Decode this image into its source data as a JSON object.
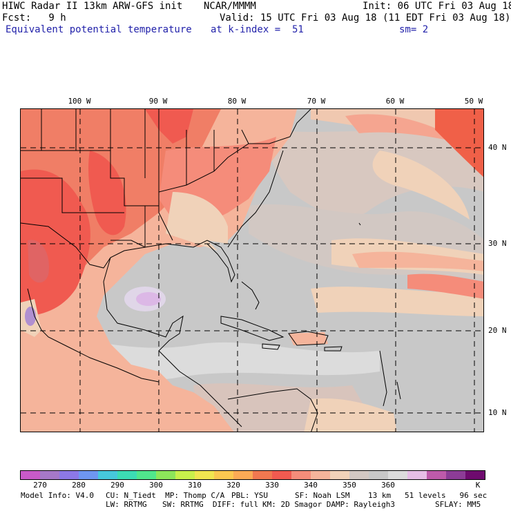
{
  "header": {
    "model": "HIWC Radar II 13km ARW-GFS init",
    "org": "NCAR/MMMM",
    "init": "Init: 06 UTC Fri 03 Aug 18",
    "fcst": "Fcst:   9 h",
    "valid": "Valid: 15 UTC Fri 03 Aug 18 (11 EDT Fri 03 Aug 18)",
    "field": "Equivalent potential temperature",
    "level": "at k-index =  51",
    "smooth": "sm= 2"
  },
  "axes": {
    "lon_ticks": [
      "100 W",
      "90 W",
      "80 W",
      "70 W",
      "60 W",
      "50 W"
    ],
    "lat_ticks": [
      "40 N",
      "30 N",
      "20 N",
      "10 N"
    ]
  },
  "colorbar": {
    "colors": [
      "#c85ac8",
      "#a678c8",
      "#8c78e6",
      "#6e96f0",
      "#46c8dc",
      "#3cdcb4",
      "#50e68c",
      "#8ce65a",
      "#c8f04b",
      "#f0e650",
      "#fac850",
      "#faaa55",
      "#f07850",
      "#f05a50",
      "#f58c7a",
      "#f5b49b",
      "#f0d2b9",
      "#d2c8c3",
      "#c8c8c8",
      "#dcdcdc",
      "#e6bee6",
      "#be5aaa",
      "#8c3c96",
      "#6e0a6e"
    ],
    "labels": [
      "270",
      "280",
      "290",
      "300",
      "310",
      "320",
      "330",
      "340",
      "350",
      "360"
    ],
    "unit": "K"
  },
  "footer": {
    "line1_a": "Model Info: V4.0",
    "line1_b": "CU: N_Tiedt  MP: Thomp C/A",
    "line1_c": "PBL: YSU",
    "line1_d": "SF: Noah LSM",
    "line1_e": "13 km   51 levels   96 sec",
    "line2_a": "LW: RRTMG",
    "line2_b": "SW: RRTMG  DIFF: full",
    "line2_c": "KM: 2D Smagor DAMP: Rayleigh3",
    "line2_d": "SFLAY: MM5"
  }
}
